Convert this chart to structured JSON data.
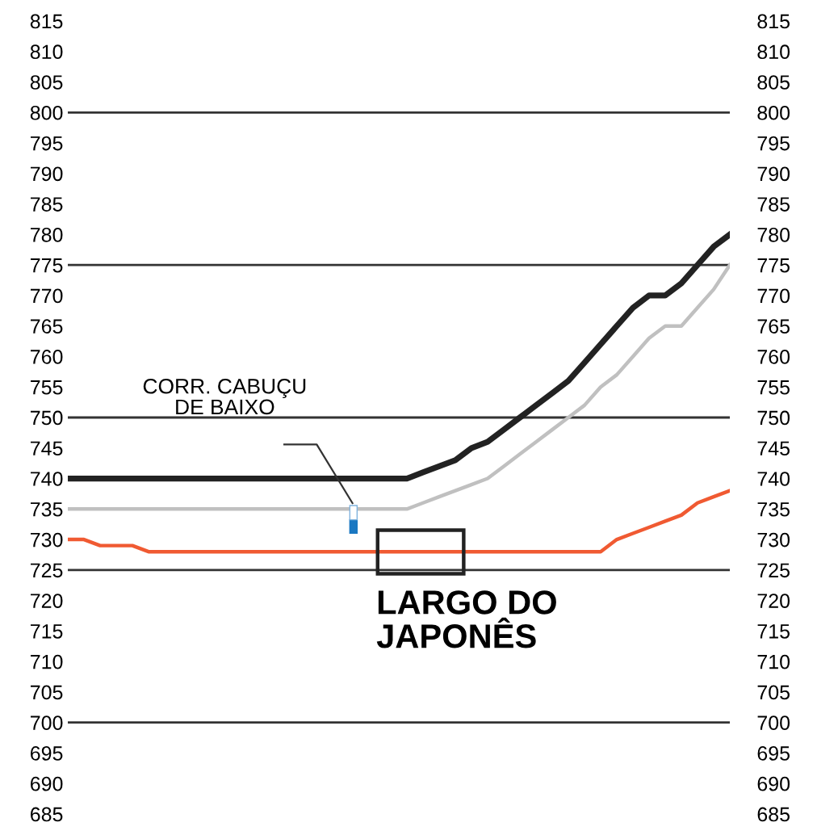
{
  "chart_data": {
    "type": "line",
    "categories": [
      null,
      null,
      null,
      null,
      null,
      null,
      null,
      null,
      null,
      null,
      null,
      null,
      null,
      null,
      null,
      null,
      null,
      null,
      null,
      null,
      null,
      null,
      null,
      null,
      null,
      null,
      null,
      null,
      null,
      null,
      null,
      null,
      null,
      null,
      null,
      null,
      null,
      null,
      null,
      null,
      null,
      null
    ],
    "ylim": [
      685,
      815
    ],
    "yticks": [
      685,
      690,
      695,
      700,
      705,
      710,
      715,
      720,
      725,
      730,
      735,
      740,
      745,
      750,
      755,
      760,
      765,
      770,
      775,
      780,
      785,
      790,
      795,
      800,
      805,
      810,
      815
    ],
    "y2lim": [
      685,
      815
    ],
    "y2ticks": [
      685,
      690,
      695,
      700,
      705,
      710,
      715,
      720,
      725,
      730,
      735,
      740,
      745,
      750,
      755,
      760,
      765,
      770,
      775,
      780,
      785,
      790,
      795,
      800,
      805,
      810,
      815
    ],
    "tick_labels": "y",
    "marker": "none",
    "line_style": "solid",
    "series": [
      {
        "color": "#222222",
        "values": [
          740,
          740,
          740,
          740,
          740,
          740,
          740,
          740,
          740,
          740,
          740,
          740,
          740,
          740,
          740,
          740,
          740,
          740,
          740,
          740,
          740,
          740,
          741,
          742,
          743,
          745,
          746,
          748,
          750,
          752,
          754,
          756,
          759,
          762,
          765,
          768,
          770,
          770,
          772,
          775,
          778,
          780
        ]
      },
      {
        "color": "#c0c0c0",
        "values": [
          735,
          735,
          735,
          735,
          735,
          735,
          735,
          735,
          735,
          735,
          735,
          735,
          735,
          735,
          735,
          735,
          735,
          735,
          735,
          735,
          735,
          735,
          736,
          737,
          738,
          739,
          740,
          742,
          744,
          746,
          748,
          750,
          752,
          755,
          757,
          760,
          763,
          765,
          765,
          768,
          771,
          775
        ]
      },
      {
        "color": "#f05a32",
        "values": [
          730,
          730,
          729,
          729,
          729,
          728,
          728,
          728,
          728,
          728,
          728,
          728,
          728,
          728,
          728,
          728,
          728,
          728,
          728,
          728,
          728,
          728,
          728,
          728,
          728,
          728,
          728,
          728,
          728,
          728,
          728,
          728,
          728,
          728,
          730,
          731,
          732,
          733,
          734,
          736,
          737,
          738
        ]
      }
    ],
    "ref_lines": [
      {
        "axis": "y",
        "value": 700,
        "color": "#333333"
      },
      {
        "axis": "y",
        "value": 725,
        "color": "#333333"
      },
      {
        "axis": "y",
        "value": 750,
        "color": "#333333"
      },
      {
        "axis": "y",
        "value": 775,
        "color": "#333333"
      },
      {
        "axis": "y",
        "value": 800,
        "color": "#333333"
      }
    ],
    "annotations": [
      "CORR. CABUÇU\nDE BAIXO",
      "LARGO DO\nJAPONÊS"
    ]
  }
}
